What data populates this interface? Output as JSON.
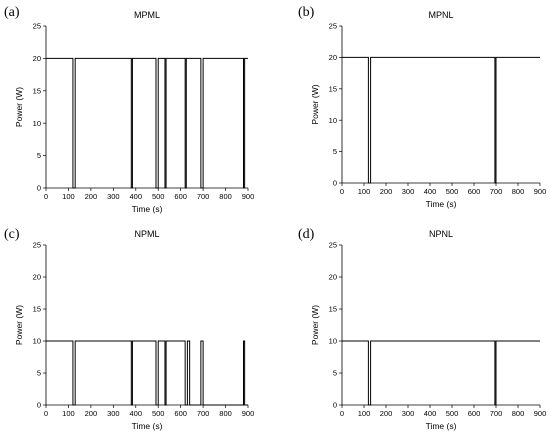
{
  "chart_data": [
    {
      "panel": "(a)",
      "type": "line",
      "title": "MPML",
      "xlabel": "Time (s)",
      "ylabel": "Power (W)",
      "xlim": [
        0,
        900
      ],
      "ylim": [
        0,
        25
      ],
      "xticks": [
        0,
        100,
        200,
        300,
        400,
        500,
        600,
        700,
        800,
        900
      ],
      "yticks": [
        0,
        5,
        10,
        15,
        20,
        25
      ],
      "grid": false,
      "series": [
        {
          "x": [
            0,
            120,
            120,
            130,
            130,
            380,
            380,
            385,
            385,
            490,
            490,
            500,
            500,
            530,
            530,
            535,
            535,
            620,
            620,
            625,
            625,
            690,
            690,
            700,
            700,
            880,
            880,
            885,
            885,
            900
          ],
          "y": [
            20,
            20,
            0,
            0,
            20,
            20,
            0,
            0,
            20,
            20,
            0,
            0,
            20,
            20,
            0,
            0,
            20,
            20,
            0,
            0,
            20,
            20,
            0,
            0,
            20,
            20,
            0,
            0,
            20,
            20
          ]
        }
      ]
    },
    {
      "panel": "(b)",
      "type": "line",
      "title": "MPNL",
      "xlabel": "Time (s)",
      "ylabel": "Power (W)",
      "xlim": [
        0,
        900
      ],
      "ylim": [
        0,
        25
      ],
      "xticks": [
        0,
        100,
        200,
        300,
        400,
        500,
        600,
        700,
        800,
        900
      ],
      "yticks": [
        0,
        5,
        10,
        15,
        20,
        25
      ],
      "grid": false,
      "series": [
        {
          "x": [
            0,
            120,
            120,
            130,
            130,
            695,
            695,
            700,
            700,
            900
          ],
          "y": [
            20,
            20,
            0,
            0,
            20,
            20,
            0,
            0,
            20,
            20
          ]
        }
      ]
    },
    {
      "panel": "(c)",
      "type": "line",
      "title": "NPML",
      "xlabel": "Time (s)",
      "ylabel": "Power (W)",
      "xlim": [
        0,
        900
      ],
      "ylim": [
        0,
        25
      ],
      "xticks": [
        0,
        100,
        200,
        300,
        400,
        500,
        600,
        700,
        800,
        900
      ],
      "yticks": [
        0,
        5,
        10,
        15,
        20,
        25
      ],
      "grid": false,
      "series": [
        {
          "x": [
            0,
            120,
            120,
            130,
            130,
            380,
            380,
            385,
            385,
            490,
            490,
            500,
            500,
            530,
            530,
            535,
            535,
            620,
            620,
            630,
            630,
            640,
            640,
            690,
            690,
            700,
            700,
            880,
            880,
            885,
            885,
            900
          ],
          "y": [
            10,
            10,
            0,
            0,
            10,
            10,
            0,
            0,
            10,
            10,
            0,
            0,
            10,
            10,
            0,
            0,
            10,
            10,
            0,
            0,
            10,
            10,
            0,
            0,
            10,
            10,
            0,
            0,
            10,
            10,
            0,
            0
          ]
        }
      ]
    },
    {
      "panel": "(d)",
      "type": "line",
      "title": "NPNL",
      "xlabel": "Time (s)",
      "ylabel": "Power (W)",
      "xlim": [
        0,
        900
      ],
      "ylim": [
        0,
        25
      ],
      "xticks": [
        0,
        100,
        200,
        300,
        400,
        500,
        600,
        700,
        800,
        900
      ],
      "yticks": [
        0,
        5,
        10,
        15,
        20,
        25
      ],
      "grid": false,
      "series": [
        {
          "x": [
            0,
            120,
            120,
            130,
            130,
            695,
            695,
            700,
            700,
            900
          ],
          "y": [
            10,
            10,
            0,
            0,
            10,
            10,
            0,
            0,
            10,
            10
          ]
        }
      ]
    }
  ]
}
